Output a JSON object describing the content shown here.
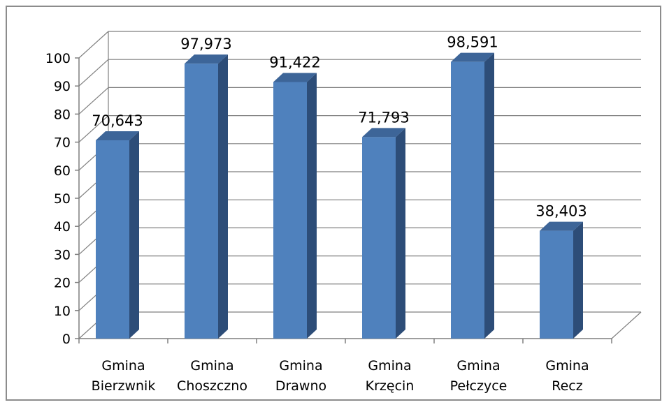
{
  "chart_data": {
    "type": "bar",
    "categories": [
      [
        "Gmina",
        "Bierzwnik"
      ],
      [
        "Gmina",
        "Choszczno"
      ],
      [
        "Gmina",
        "Drawno"
      ],
      [
        "Gmina",
        "Krzęcin"
      ],
      [
        "Gmina",
        "Pełczyce"
      ],
      [
        "Gmina",
        "Recz"
      ]
    ],
    "values": [
      70.643,
      97.973,
      91.422,
      71.793,
      98.591,
      38.403
    ],
    "data_labels": [
      "70,643",
      "97,973",
      "91,422",
      "71,793",
      "98,591",
      "38,403"
    ],
    "y_ticks": [
      "0",
      "10",
      "20",
      "30",
      "40",
      "50",
      "60",
      "70",
      "80",
      "90",
      "100"
    ],
    "ylim": [
      0,
      100
    ],
    "title": "",
    "xlabel": "",
    "ylabel": "",
    "grid": true,
    "legend": "none",
    "style": "3d-column",
    "colors": {
      "bar_front": "#4f81bd",
      "bar_side": "#2d4d78",
      "bar_top": "#3d6598",
      "grid": "#7f7f7f",
      "frame": "#8c8c8c"
    }
  }
}
